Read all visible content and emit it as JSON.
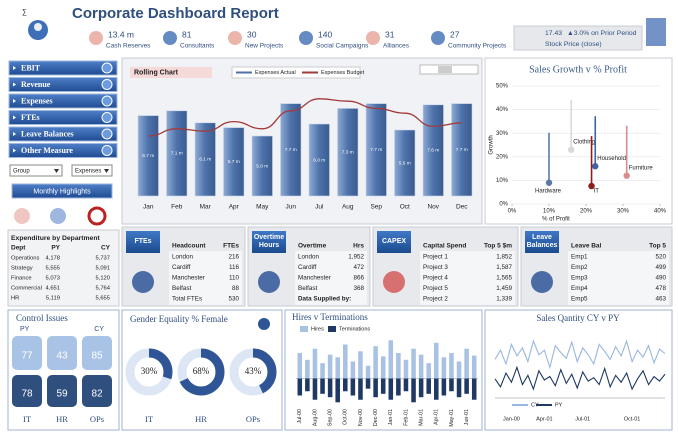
{
  "header": {
    "title": "Corporate Dashboard Report"
  },
  "kpis": [
    {
      "value": "13.4 m",
      "label": "Cash Reserves"
    },
    {
      "value": "81",
      "label": "Consultants"
    },
    {
      "value": "30",
      "label": "New Projects"
    },
    {
      "value": "140",
      "label": "Social Campaigns"
    },
    {
      "value": "31",
      "label": "Alliances"
    },
    {
      "value": "27",
      "label": "Community Projects"
    }
  ],
  "stock": {
    "value": "17.43",
    "change": "▲3.0% on Prior Period",
    "label": "Stock Price (close)"
  },
  "menu": [
    "EBIT",
    "Revenue",
    "Expenses",
    "FTEs",
    "Leave Balances",
    "Other Measure"
  ],
  "selectors": [
    "Group",
    "Expenses"
  ],
  "highlights_button": "Monthly Highlights",
  "expenditure": {
    "title": "Expenditure by Department",
    "columns": [
      "Dept",
      "PY",
      "CY"
    ],
    "rows": [
      [
        "Operations",
        "4,178",
        "5,737"
      ],
      [
        "Strategy",
        "5,555",
        "5,091"
      ],
      [
        "Finance",
        "5,073",
        "5,120"
      ],
      [
        "Commercial",
        "4,651",
        "5,764"
      ],
      [
        "HR",
        "5,119",
        "5,655"
      ]
    ]
  },
  "panels": [
    {
      "tag": "FTEs",
      "columns": [
        "Headcount",
        "FTEs"
      ],
      "rows": [
        [
          "London",
          "216"
        ],
        [
          "Cardiff",
          "116"
        ],
        [
          "Manchester",
          "110"
        ],
        [
          "Belfast",
          "88"
        ],
        [
          "Total FTEs",
          "530"
        ]
      ]
    },
    {
      "tag": "Overtime Hours",
      "columns": [
        "Overtime",
        "Hrs"
      ],
      "rows": [
        [
          "London",
          "1,952"
        ],
        [
          "Cardiff",
          "472"
        ],
        [
          "Manchester",
          "866"
        ],
        [
          "Belfast",
          "368"
        ]
      ],
      "footer": "Data Supplied by:"
    },
    {
      "tag": "CAPEX",
      "columns": [
        "Capital Spend",
        "Top 5 $m"
      ],
      "rows": [
        [
          "Project 1",
          "1,852"
        ],
        [
          "Project 3",
          "1,587"
        ],
        [
          "Project 4",
          "1,565"
        ],
        [
          "Project 5",
          "1,459"
        ],
        [
          "Project 2",
          "1,339"
        ]
      ]
    },
    {
      "tag": "Leave Balances",
      "columns": [
        "Leave Bal",
        "Top 5"
      ],
      "rows": [
        [
          "Emp1",
          "520"
        ],
        [
          "Emp2",
          "499"
        ],
        [
          "Emp3",
          "490"
        ],
        [
          "Emp4",
          "478"
        ],
        [
          "Emp5",
          "463"
        ]
      ]
    }
  ],
  "control_issues": {
    "title": "Control Issues",
    "legend": [
      "PY",
      "CY"
    ],
    "items": [
      {
        "label": "IT",
        "py": 77,
        "cy": 78
      },
      {
        "label": "HR",
        "py": 43,
        "cy": 59
      },
      {
        "label": "OPs",
        "py": 85,
        "cy": 82
      }
    ]
  },
  "chart_data": [
    {
      "type": "bar",
      "title": "Rolling Chart",
      "categories": [
        "Jan",
        "Feb",
        "Mar",
        "Apr",
        "May",
        "Jun",
        "Jul",
        "Aug",
        "Sep",
        "Oct",
        "Nov",
        "Dec"
      ],
      "ylim": [
        0,
        9
      ],
      "series": [
        {
          "name": "Expenses Actual",
          "type": "bar",
          "color": "#4d72aa",
          "values": [
            6.7,
            7.1,
            6.1,
            5.7,
            5.0,
            7.7,
            6.0,
            7.3,
            7.7,
            5.5,
            7.6,
            7.7
          ],
          "value_labels": [
            "6.7 m",
            "7.1 m",
            "6.1 m",
            "5.7 m",
            "5.0 m",
            "7.7 m",
            "6.0 m",
            "7.3 m",
            "7.7 m",
            "5.5 m",
            "7.6 m",
            "7.7 m"
          ]
        },
        {
          "name": "Expenses Budget",
          "type": "line",
          "color": "#a33a3a",
          "values": [
            5.0,
            5.6,
            5.4,
            6.2,
            5.6,
            7.1,
            8.1,
            7.9,
            7.3,
            6.9,
            5.8,
            6.1
          ]
        }
      ]
    },
    {
      "type": "scatter",
      "title": "Sales Growth v % Profit",
      "xlabel": "% of Profit",
      "ylabel": "Growth",
      "categories": [
        "Hardware",
        "Clothing",
        "Household",
        "IT",
        "Furniture"
      ],
      "x": [
        10,
        16,
        22.5,
        21.5,
        31
      ],
      "values": [
        9,
        23,
        16,
        7.6,
        12
      ],
      "colors": [
        "#5a79a6",
        "#d9d9d9",
        "#3d63a8",
        "#8b1e1e",
        "#d98c8c"
      ],
      "xlim": [
        0,
        40
      ],
      "ylim": [
        0,
        50
      ],
      "xticks": [
        {
          "value": 0,
          "label": "0%"
        },
        {
          "value": 10,
          "label": "10%"
        },
        {
          "value": 20,
          "label": "20%"
        },
        {
          "value": 30,
          "label": "30%"
        },
        {
          "value": 40,
          "label": "40%"
        }
      ],
      "yticks": [
        {
          "value": 0,
          "label": "0%"
        },
        {
          "value": 10,
          "label": "10%"
        },
        {
          "value": 20,
          "label": "20%"
        },
        {
          "value": 30,
          "label": "30%"
        },
        {
          "value": 40,
          "label": "40%"
        },
        {
          "value": 50,
          "label": "50%"
        }
      ],
      "grid": true
    },
    {
      "type": "donut",
      "title": "Gender Equality % Female",
      "categories": [
        "IT",
        "HR",
        "OPs"
      ],
      "values": [
        30,
        68,
        43
      ],
      "value_labels": [
        "30%",
        "68%",
        "43%"
      ],
      "color": "#2f5597"
    },
    {
      "type": "bar",
      "title": "Hires v Terminations",
      "categories": [
        "Jul-00",
        null,
        "Aug-00",
        null,
        "Sep-00",
        null,
        "Oct-00",
        null,
        "Nov-00",
        null,
        "Dec-00",
        null,
        "Jan-01",
        null,
        "Feb-01",
        null,
        "Mar-01",
        null,
        "Apr-01",
        null,
        "May-01",
        null,
        "Jun-01",
        null
      ],
      "ylim": [
        -30,
        50
      ],
      "series": [
        {
          "name": "Hires",
          "type": "bar",
          "color": "#a9c1e3",
          "values": [
            30,
            22,
            35,
            18,
            28,
            25,
            40,
            20,
            32,
            15,
            38,
            26,
            45,
            30,
            22,
            35,
            28,
            18,
            42,
            25,
            30,
            20,
            35,
            27
          ]
        },
        {
          "name": "Terminations",
          "type": "bar",
          "color": "#1f3864",
          "values": [
            -20,
            -15,
            -25,
            -18,
            -22,
            -28,
            -15,
            -20,
            -25,
            -12,
            -22,
            -18,
            -25,
            -20,
            -15,
            -28,
            -22,
            -18,
            -25,
            -20,
            -15,
            -22,
            -18,
            -25
          ]
        }
      ]
    },
    {
      "type": "line",
      "title": "Sales Qantity CY v PY",
      "categories": [
        null,
        null,
        null,
        "Jan-00",
        null,
        null,
        null,
        null,
        null,
        "Apr-01",
        null,
        null,
        null,
        null,
        null,
        null,
        "Jul-01",
        null,
        null,
        null,
        null,
        null,
        null,
        null,
        null,
        "Oct-01",
        null,
        null,
        null,
        null,
        null,
        null
      ],
      "ylim": [
        30,
        85
      ],
      "series": [
        {
          "name": "CY",
          "color": "#9ab6de",
          "values": [
            62,
            70,
            58,
            75,
            65,
            72,
            60,
            78,
            66,
            70,
            55,
            74,
            68,
            63,
            77,
            60,
            72,
            66,
            58,
            75,
            69,
            62,
            73,
            65,
            78,
            60,
            70,
            64,
            74,
            59,
            71,
            67
          ]
        },
        {
          "name": "PY",
          "color": "#1f3864",
          "values": [
            45,
            38,
            50,
            42,
            55,
            40,
            48,
            36,
            52,
            44,
            47,
            39,
            53,
            41,
            49,
            37,
            51,
            43,
            46,
            40,
            54,
            38,
            48,
            42,
            50,
            36,
            45,
            52,
            40,
            47,
            43,
            49
          ]
        }
      ]
    }
  ]
}
